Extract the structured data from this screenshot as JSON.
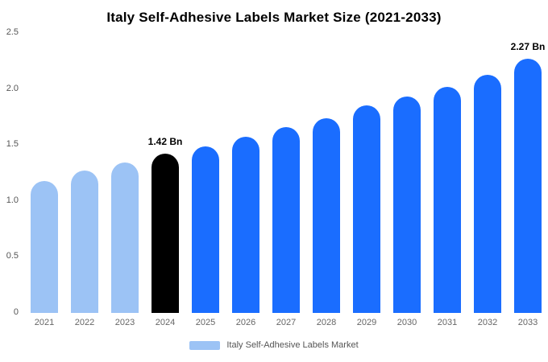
{
  "chart_data": {
    "type": "bar",
    "title": "Italy Self-Adhesive Labels Market Size (2021-2033)",
    "categories": [
      "2021",
      "2022",
      "2023",
      "2024",
      "2025",
      "2026",
      "2027",
      "2028",
      "2029",
      "2030",
      "2031",
      "2032",
      "2033"
    ],
    "values": [
      1.18,
      1.27,
      1.34,
      1.42,
      1.49,
      1.57,
      1.66,
      1.74,
      1.85,
      1.93,
      2.02,
      2.13,
      2.27
    ],
    "unit": "Bn",
    "xlabel": "",
    "ylabel": "",
    "ylim": [
      0,
      2.5
    ],
    "yticks": [
      "0",
      "0.5",
      "1.0",
      "1.5",
      "2.0",
      "2.5"
    ],
    "grid": false,
    "legend_position": "bottom",
    "bar_colors": [
      "#9cc3f5",
      "#9cc3f5",
      "#9cc3f5",
      "#000000",
      "#1a6dff",
      "#1a6dff",
      "#1a6dff",
      "#1a6dff",
      "#1a6dff",
      "#1a6dff",
      "#1a6dff",
      "#1a6dff",
      "#1a6dff"
    ],
    "annotations": [
      {
        "index": 3,
        "label": "1.42 Bn"
      },
      {
        "index": 12,
        "label": "2.27 Bn"
      }
    ],
    "legend": {
      "label": "Italy Self-Adhesive Labels Market",
      "swatch_color": "#9cc3f5"
    }
  }
}
